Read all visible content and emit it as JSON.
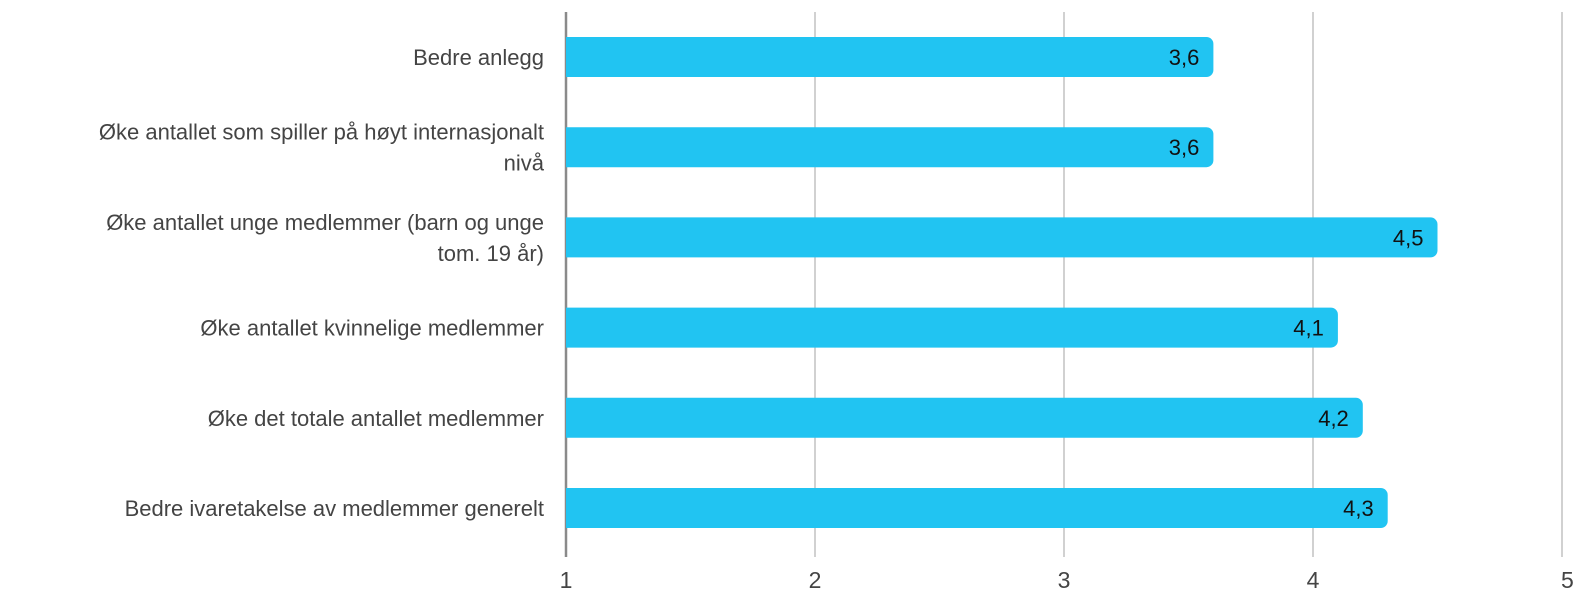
{
  "chart_data": {
    "type": "bar",
    "orientation": "horizontal",
    "categories": [
      [
        "Bedre anlegg"
      ],
      [
        "Øke antallet som spiller på høyt internasjonalt",
        "nivå"
      ],
      [
        "Øke antallet unge medlemmer (barn og unge",
        "tom. 19 år)"
      ],
      [
        "Øke antallet kvinnelige medlemmer"
      ],
      [
        "Øke det totale antallet medlemmer"
      ],
      [
        "Bedre ivaretakelse av medlemmer generelt"
      ]
    ],
    "values": [
      3.6,
      3.6,
      4.5,
      4.1,
      4.2,
      4.3
    ],
    "data_labels": [
      "3,6",
      "3,6",
      "4,5",
      "4,1",
      "4,2",
      "4,3"
    ],
    "xlim": [
      1,
      5
    ],
    "xticks": [
      1,
      2,
      3,
      4,
      5
    ],
    "xtick_labels": [
      "1",
      "2",
      "3",
      "4",
      "5"
    ],
    "grid": "vertical",
    "title": "",
    "xlabel": "",
    "ylabel": "",
    "colors": {
      "bar": "#21C4F2",
      "grid": "#C2C2C2",
      "axis": "#8A8A8A",
      "label": "#444444",
      "data_label": "#111111"
    }
  }
}
